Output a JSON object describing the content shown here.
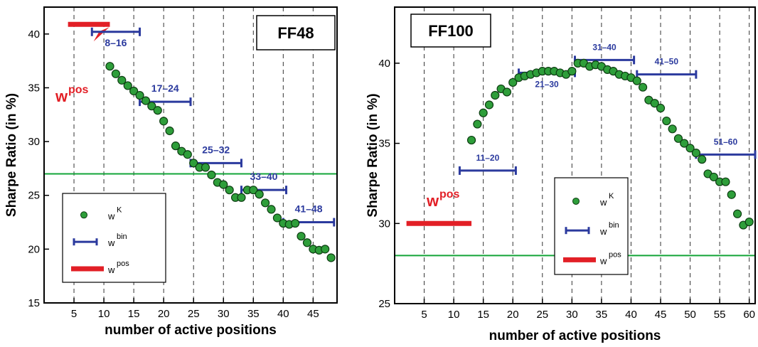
{
  "colors": {
    "kelly": "#2e9e3a",
    "bin": "#2b3a9e",
    "pos": "#e21f26",
    "threshold": "#13a538"
  },
  "chart_data": [
    {
      "type": "scatter",
      "title": "FF48",
      "xlabel": "number of active positions",
      "ylabel": "Sharpe Ratio (in %)",
      "xlim": [
        0,
        49
      ],
      "ylim": [
        15,
        42.5
      ],
      "xticks": [
        5,
        10,
        15,
        20,
        25,
        30,
        35,
        40,
        45
      ],
      "yticks": [
        15,
        20,
        25,
        30,
        35,
        40
      ],
      "grid": "vertical dashed lines at x ticks",
      "threshold": 27,
      "wK_points": [
        [
          11,
          37
        ],
        [
          12,
          36.3
        ],
        [
          13,
          35.7
        ],
        [
          14,
          35.2
        ],
        [
          15,
          34.7
        ],
        [
          16,
          34.3
        ],
        [
          17,
          33.8
        ],
        [
          18,
          33.3
        ],
        [
          19,
          32.9
        ],
        [
          20,
          31.9
        ],
        [
          21,
          31
        ],
        [
          22,
          29.6
        ],
        [
          23,
          29.1
        ],
        [
          24,
          28.8
        ],
        [
          25,
          28
        ],
        [
          26,
          27.6
        ],
        [
          27,
          27.6
        ],
        [
          28,
          26.9
        ],
        [
          29,
          26.2
        ],
        [
          30,
          26
        ],
        [
          31,
          25.5
        ],
        [
          32,
          24.8
        ],
        [
          33,
          24.8
        ],
        [
          34,
          25.5
        ],
        [
          35,
          25.5
        ],
        [
          36,
          25.1
        ],
        [
          37,
          24.3
        ],
        [
          38,
          23.7
        ],
        [
          39,
          22.9
        ],
        [
          40,
          22.4
        ],
        [
          41,
          22.3
        ],
        [
          42,
          22.4
        ],
        [
          43,
          21.2
        ],
        [
          44,
          20.6
        ],
        [
          45,
          20
        ],
        [
          46,
          19.9
        ],
        [
          47,
          20
        ],
        [
          48,
          19.2
        ]
      ],
      "wbin_segments": [
        {
          "label": "8–16",
          "x0": 8,
          "x1": 16,
          "y": 40.2
        },
        {
          "label": "17–24",
          "x0": 16,
          "x1": 24.5,
          "y": 33.7
        },
        {
          "label": "25–32",
          "x0": 24.5,
          "x1": 33,
          "y": 28
        },
        {
          "label": "33–40",
          "x0": 33,
          "x1": 40.5,
          "y": 25.5
        },
        {
          "label": "41–48",
          "x0": 40,
          "x1": 48.5,
          "y": 22.5
        }
      ],
      "wpos_segment": {
        "x0": 4,
        "x1": 11,
        "y": 40.9
      },
      "wpos_label": "w",
      "wpos_sup": "pos",
      "legend": {
        "items": [
          {
            "name": "w",
            "sup": "K"
          },
          {
            "name": "w",
            "sup": "bin"
          },
          {
            "name": "w",
            "sup": "pos"
          }
        ]
      }
    },
    {
      "type": "scatter",
      "title": "FF100",
      "xlabel": "number of active positions",
      "ylabel": "Sharpe Ratio (in %)",
      "xlim": [
        0,
        61
      ],
      "ylim": [
        25,
        43.5
      ],
      "xticks": [
        5,
        10,
        15,
        20,
        25,
        30,
        35,
        40,
        45,
        50,
        55,
        60
      ],
      "yticks": [
        25,
        30,
        35,
        40
      ],
      "grid": "vertical dashed lines at x ticks",
      "threshold": 28,
      "wK_points": [
        [
          13,
          35.2
        ],
        [
          14,
          36.2
        ],
        [
          15,
          36.9
        ],
        [
          16,
          37.4
        ],
        [
          17,
          38
        ],
        [
          18,
          38.4
        ],
        [
          19,
          38.2
        ],
        [
          20,
          38.8
        ],
        [
          21,
          39.1
        ],
        [
          22,
          39.2
        ],
        [
          23,
          39.3
        ],
        [
          24,
          39.4
        ],
        [
          25,
          39.5
        ],
        [
          26,
          39.5
        ],
        [
          27,
          39.5
        ],
        [
          28,
          39.4
        ],
        [
          29,
          39.3
        ],
        [
          30,
          39.5
        ],
        [
          31,
          40
        ],
        [
          32,
          40
        ],
        [
          33,
          39.8
        ],
        [
          34,
          39.9
        ],
        [
          35,
          39.8
        ],
        [
          36,
          39.6
        ],
        [
          37,
          39.5
        ],
        [
          38,
          39.3
        ],
        [
          39,
          39.2
        ],
        [
          40,
          39.1
        ],
        [
          41,
          38.9
        ],
        [
          42,
          38.5
        ],
        [
          43,
          37.7
        ],
        [
          44,
          37.5
        ],
        [
          45,
          37.2
        ],
        [
          46,
          36.4
        ],
        [
          47,
          35.9
        ],
        [
          48,
          35.3
        ],
        [
          49,
          35
        ],
        [
          50,
          34.7
        ],
        [
          51,
          34.4
        ],
        [
          52,
          34
        ],
        [
          53,
          33.1
        ],
        [
          54,
          32.9
        ],
        [
          55,
          32.6
        ],
        [
          56,
          32.6
        ],
        [
          57,
          31.8
        ],
        [
          58,
          30.6
        ],
        [
          59,
          29.9
        ],
        [
          60,
          30.1
        ]
      ],
      "wbin_segments": [
        {
          "label": "11–20",
          "x0": 11,
          "x1": 20.5,
          "y": 33.3
        },
        {
          "label": "21–30",
          "x0": 21,
          "x1": 30.5,
          "y": 39.4
        },
        {
          "label": "31–40",
          "x0": 30.5,
          "x1": 40.5,
          "y": 40.2
        },
        {
          "label": "41–50",
          "x0": 41,
          "x1": 51,
          "y": 39.3
        },
        {
          "label": "51–60",
          "x0": 51,
          "x1": 61,
          "y": 34.3
        }
      ],
      "wpos_segment": {
        "x0": 2,
        "x1": 13,
        "y": 30
      },
      "wpos_label": "w",
      "wpos_sup": "pos",
      "legend": {
        "items": [
          {
            "name": "w",
            "sup": "K"
          },
          {
            "name": "w",
            "sup": "bin"
          },
          {
            "name": "w",
            "sup": "pos"
          }
        ]
      }
    }
  ]
}
